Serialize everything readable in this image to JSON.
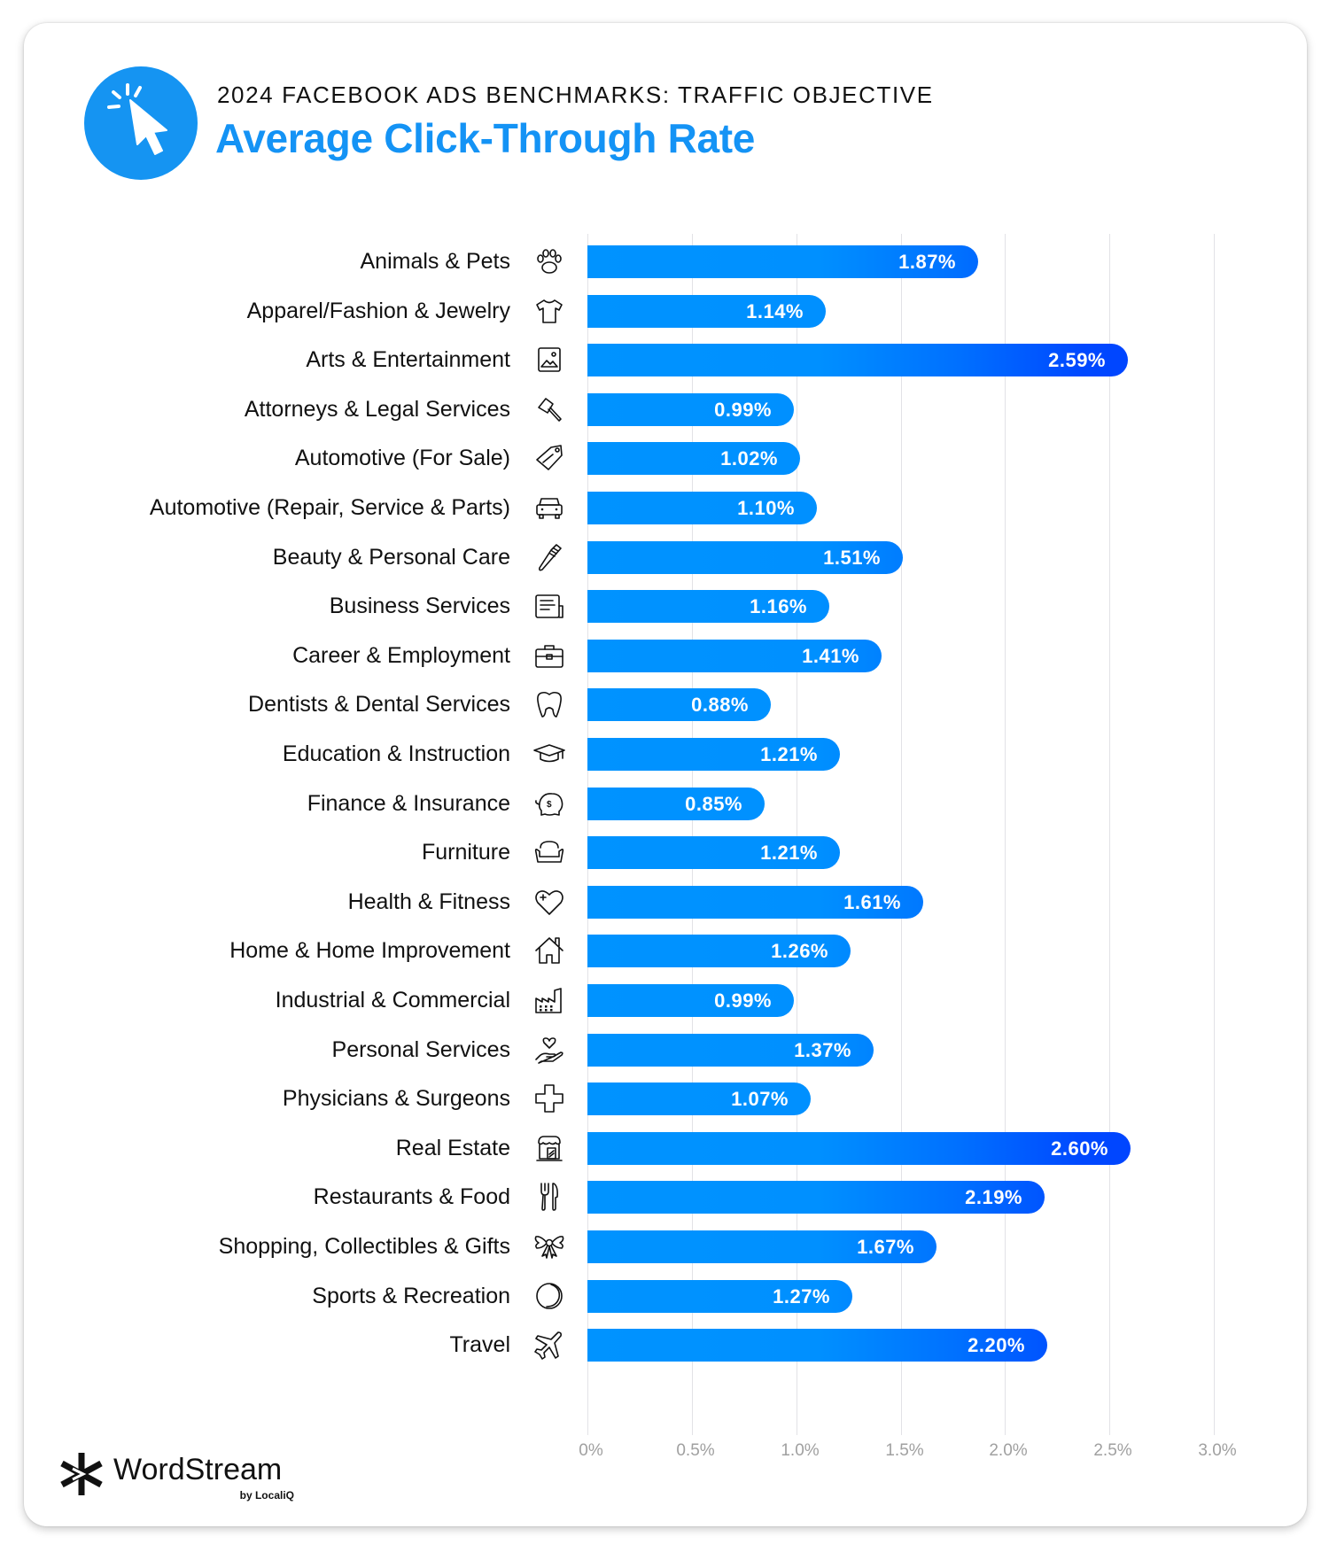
{
  "header": {
    "subtitle": "2024 FACEBOOK ADS BENCHMARKS: TRAFFIC OBJECTIVE",
    "title": "Average Click-Through Rate",
    "icon": "cursor-click-icon",
    "accent_color": "#1594f2"
  },
  "chart_data": {
    "type": "bar",
    "orientation": "horizontal",
    "title": "Average Click-Through Rate",
    "subtitle": "2024 FACEBOOK ADS BENCHMARKS: TRAFFIC OBJECTIVE",
    "xlabel": "",
    "ylabel": "",
    "xlim": [
      0,
      3.0
    ],
    "x_ticks": [
      "0%",
      "0.5%",
      "1.0%",
      "1.5%",
      "2.0%",
      "2.5%",
      "3.0%"
    ],
    "grid": true,
    "legend": null,
    "categories": [
      "Animals & Pets",
      "Apparel/Fashion & Jewelry",
      "Arts & Entertainment",
      "Attorneys & Legal Services",
      "Automotive (For Sale)",
      "Automotive (Repair, Service & Parts)",
      "Beauty & Personal Care",
      "Business Services",
      "Career & Employment",
      "Dentists & Dental Services",
      "Education & Instruction",
      "Finance & Insurance",
      "Furniture",
      "Health & Fitness",
      "Home & Home Improvement",
      "Industrial & Commercial",
      "Personal Services",
      "Physicians & Surgeons",
      "Real Estate",
      "Restaurants & Food",
      "Shopping, Collectibles & Gifts",
      "Sports & Recreation",
      "Travel"
    ],
    "values": [
      1.87,
      1.14,
      2.59,
      0.99,
      1.02,
      1.1,
      1.51,
      1.16,
      1.41,
      0.88,
      1.21,
      0.85,
      1.21,
      1.61,
      1.26,
      0.99,
      1.37,
      1.07,
      2.6,
      2.19,
      1.67,
      1.27,
      2.2
    ],
    "value_labels": [
      "1.87%",
      "1.14%",
      "2.59%",
      "0.99%",
      "1.02%",
      "1.10%",
      "1.51%",
      "1.16%",
      "1.41%",
      "0.88%",
      "1.21%",
      "0.85%",
      "1.21%",
      "1.61%",
      "1.26%",
      "0.99%",
      "1.37%",
      "1.07%",
      "2.60%",
      "2.19%",
      "1.67%",
      "1.27%",
      "2.20%"
    ],
    "icons": [
      "paw-icon",
      "tshirt-icon",
      "picture-frame-icon",
      "gavel-icon",
      "price-tag-icon",
      "car-icon",
      "comb-icon",
      "document-icon",
      "briefcase-icon",
      "tooth-icon",
      "graduation-cap-icon",
      "piggy-bank-icon",
      "armchair-icon",
      "heart-plus-icon",
      "house-icon",
      "factory-icon",
      "hand-heart-icon",
      "medical-cross-icon",
      "storefront-icon",
      "fork-knife-icon",
      "bow-icon",
      "ball-icon",
      "airplane-icon"
    ],
    "bar_colors": {
      "start": "#0093ff",
      "end": "#0040ff"
    }
  },
  "footer": {
    "brand": "WordStream",
    "brand_sub": "by LocaliQ",
    "logo_icon": "wordstream-logo-icon"
  }
}
